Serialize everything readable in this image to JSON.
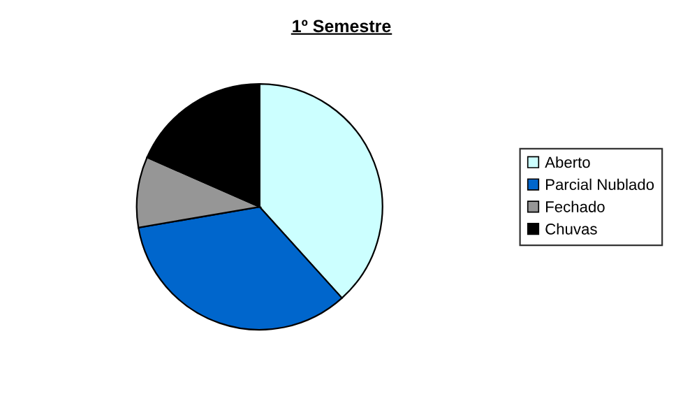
{
  "chart_data": {
    "type": "pie",
    "title": "1º Semestre",
    "categories": [
      "Aberto",
      "Parcial Nublado",
      "Fechado",
      "Chuvas"
    ],
    "values": [
      38.3,
      34.0,
      9.3,
      18.4
    ],
    "colors": [
      "#ccffff",
      "#0066cc",
      "#969696",
      "#000000"
    ],
    "legend": "right"
  }
}
